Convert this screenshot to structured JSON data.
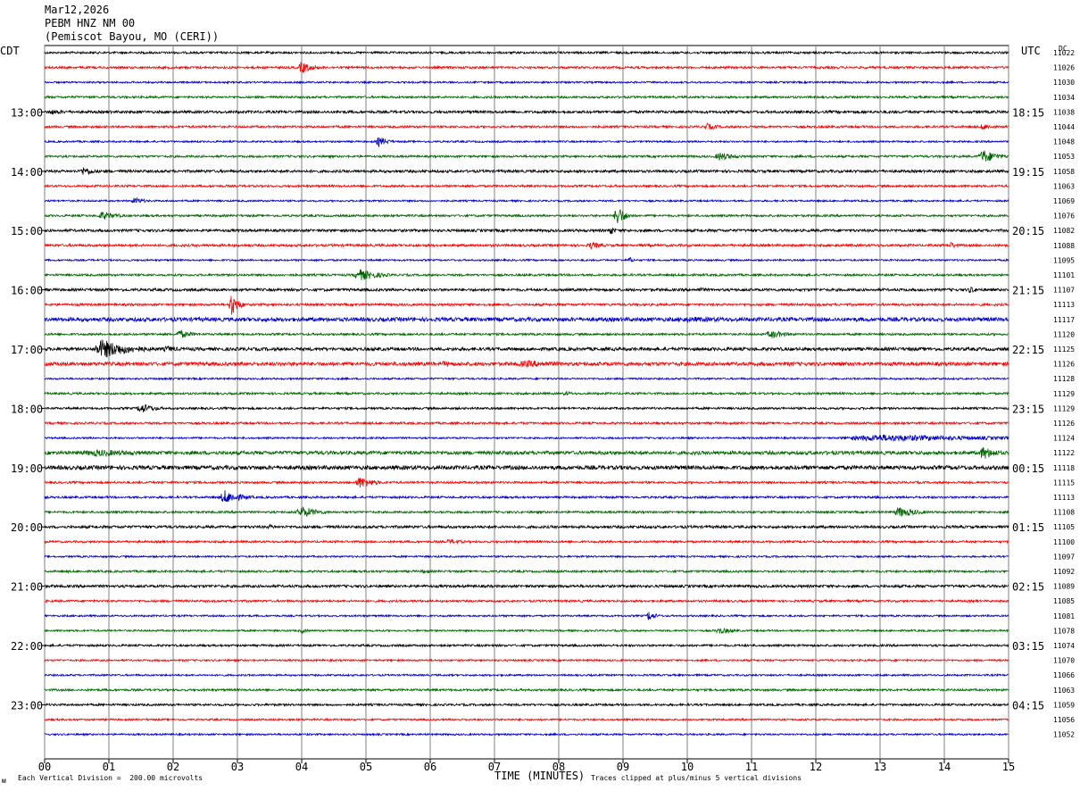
{
  "header": {
    "date": "Mar12,2026",
    "station": "PEBM HNZ NM 00",
    "location": "(Pemiscot Bayou, MO (CERI))"
  },
  "footer": {
    "scale_note": "Each Vertical Division =  200.00 microvolts",
    "clip_note": "Traces clipped at plus/minus 5 vertical divisions",
    "corner_mark": "ᴍ"
  },
  "chart_data": {
    "type": "line",
    "title": "",
    "xlabel": "TIME (MINUTES)",
    "left_axis_title": "CDT",
    "right_axis_title": "UTC",
    "dc_title": "DC",
    "xlim": [
      0,
      15
    ],
    "x_ticks": [
      "00",
      "01",
      "02",
      "03",
      "04",
      "05",
      "06",
      "07",
      "08",
      "09",
      "10",
      "11",
      "12",
      "13",
      "14",
      "15"
    ],
    "trace_colors": [
      "#000000",
      "#ff0000",
      "#0000cc",
      "#006600"
    ],
    "grid": true,
    "left_time_labels": [
      {
        "row": 4,
        "label": "13:00"
      },
      {
        "row": 8,
        "label": "14:00"
      },
      {
        "row": 12,
        "label": "15:00"
      },
      {
        "row": 16,
        "label": "16:00"
      },
      {
        "row": 20,
        "label": "17:00"
      },
      {
        "row": 24,
        "label": "18:00"
      },
      {
        "row": 28,
        "label": "19:00"
      },
      {
        "row": 32,
        "label": "20:00"
      },
      {
        "row": 36,
        "label": "21:00"
      },
      {
        "row": 40,
        "label": "22:00"
      },
      {
        "row": 44,
        "label": "23:00"
      }
    ],
    "right_time_labels": [
      {
        "row": 4,
        "label": "18:15"
      },
      {
        "row": 8,
        "label": "19:15"
      },
      {
        "row": 12,
        "label": "20:15"
      },
      {
        "row": 16,
        "label": "21:15"
      },
      {
        "row": 20,
        "label": "22:15"
      },
      {
        "row": 24,
        "label": "23:15"
      },
      {
        "row": 28,
        "label": "00:15"
      },
      {
        "row": 32,
        "label": "01:15"
      },
      {
        "row": 36,
        "label": "02:15"
      },
      {
        "row": 40,
        "label": "03:15"
      },
      {
        "row": 44,
        "label": "04:15"
      }
    ],
    "dc_offsets": [
      11022,
      11026,
      11030,
      11034,
      11038,
      11044,
      11048,
      11053,
      11058,
      11063,
      11069,
      11076,
      11082,
      11088,
      11095,
      11101,
      11107,
      11113,
      11117,
      11120,
      11125,
      11126,
      11128,
      11129,
      11129,
      11126,
      11124,
      11122,
      11118,
      11115,
      11113,
      11108,
      11105,
      11100,
      11097,
      11092,
      11089,
      11085,
      11081,
      11078,
      11074,
      11070,
      11066,
      11063,
      11059,
      11056,
      11052
    ],
    "noise_levels": [
      1.2,
      1.2,
      1.0,
      1.2,
      1.5,
      1.2,
      1.0,
      1.2,
      1.5,
      1.2,
      1.0,
      1.2,
      1.5,
      1.4,
      1.0,
      1.2,
      1.5,
      1.3,
      2.2,
      1.2,
      1.8,
      2.0,
      1.0,
      1.2,
      1.2,
      1.2,
      1.0,
      2.0,
      2.2,
      1.2,
      1.2,
      1.2,
      1.5,
      1.2,
      1.0,
      1.2,
      1.5,
      1.2,
      1.0,
      1.0,
      1.2,
      1.0,
      1.0,
      1.2,
      1.2,
      1.0,
      1.0
    ],
    "events": [
      {
        "row": 1,
        "t": 4.0,
        "amp": 7,
        "dur": 0.25
      },
      {
        "row": 4,
        "t": 0.1,
        "amp": 3,
        "dur": 0.5
      },
      {
        "row": 5,
        "t": 10.3,
        "amp": 4,
        "dur": 0.3
      },
      {
        "row": 5,
        "t": 14.6,
        "amp": 4,
        "dur": 0.25
      },
      {
        "row": 6,
        "t": 5.2,
        "amp": 6,
        "dur": 0.2
      },
      {
        "row": 7,
        "t": 10.5,
        "amp": 5,
        "dur": 0.35
      },
      {
        "row": 7,
        "t": 14.6,
        "amp": 8,
        "dur": 0.3
      },
      {
        "row": 8,
        "t": 0.6,
        "amp": 5,
        "dur": 0.3
      },
      {
        "row": 10,
        "t": 1.4,
        "amp": 4,
        "dur": 0.25
      },
      {
        "row": 11,
        "t": 0.9,
        "amp": 5,
        "dur": 0.35
      },
      {
        "row": 11,
        "t": 8.9,
        "amp": 14,
        "dur": 0.15
      },
      {
        "row": 12,
        "t": 8.8,
        "amp": 6,
        "dur": 0.1
      },
      {
        "row": 13,
        "t": 8.5,
        "amp": 4,
        "dur": 0.3
      },
      {
        "row": 13,
        "t": 14.1,
        "amp": 4,
        "dur": 0.2
      },
      {
        "row": 14,
        "t": 9.1,
        "amp": 4,
        "dur": 0.1
      },
      {
        "row": 15,
        "t": 4.9,
        "amp": 7,
        "dur": 0.4
      },
      {
        "row": 16,
        "t": 10.2,
        "amp": 3,
        "dur": 0.2
      },
      {
        "row": 16,
        "t": 14.4,
        "amp": 4,
        "dur": 0.2
      },
      {
        "row": 17,
        "t": 2.9,
        "amp": 14,
        "dur": 0.15
      },
      {
        "row": 18,
        "t": 10.0,
        "amp": 3,
        "dur": 3.0
      },
      {
        "row": 19,
        "t": 2.1,
        "amp": 5,
        "dur": 0.3
      },
      {
        "row": 19,
        "t": 11.3,
        "amp": 5,
        "dur": 0.35
      },
      {
        "row": 20,
        "t": 0.9,
        "amp": 11,
        "dur": 0.6
      },
      {
        "row": 20,
        "t": 1.9,
        "amp": 4,
        "dur": 0.3
      },
      {
        "row": 21,
        "t": 7.5,
        "amp": 4,
        "dur": 1.2
      },
      {
        "row": 21,
        "t": 6.2,
        "amp": 3,
        "dur": 0.6
      },
      {
        "row": 23,
        "t": 8.1,
        "amp": 3,
        "dur": 0.2
      },
      {
        "row": 24,
        "t": 1.5,
        "amp": 6,
        "dur": 0.3
      },
      {
        "row": 26,
        "t": 13.0,
        "amp": 4,
        "dur": 3.0
      },
      {
        "row": 27,
        "t": 0.8,
        "amp": 4,
        "dur": 1.5
      },
      {
        "row": 27,
        "t": 14.6,
        "amp": 8,
        "dur": 0.3
      },
      {
        "row": 29,
        "t": 4.9,
        "amp": 7,
        "dur": 0.3
      },
      {
        "row": 30,
        "t": 2.8,
        "amp": 8,
        "dur": 0.35
      },
      {
        "row": 31,
        "t": 4.0,
        "amp": 7,
        "dur": 0.35
      },
      {
        "row": 31,
        "t": 13.3,
        "amp": 6,
        "dur": 0.4
      },
      {
        "row": 32,
        "t": 3.5,
        "amp": 3,
        "dur": 0.2
      },
      {
        "row": 33,
        "t": 6.3,
        "amp": 3,
        "dur": 0.4
      },
      {
        "row": 35,
        "t": 5.9,
        "amp": 3,
        "dur": 0.2
      },
      {
        "row": 38,
        "t": 9.4,
        "amp": 6,
        "dur": 0.15
      },
      {
        "row": 39,
        "t": 10.5,
        "amp": 4,
        "dur": 0.3
      },
      {
        "row": 39,
        "t": 4.0,
        "amp": 3,
        "dur": 0.15
      }
    ]
  }
}
